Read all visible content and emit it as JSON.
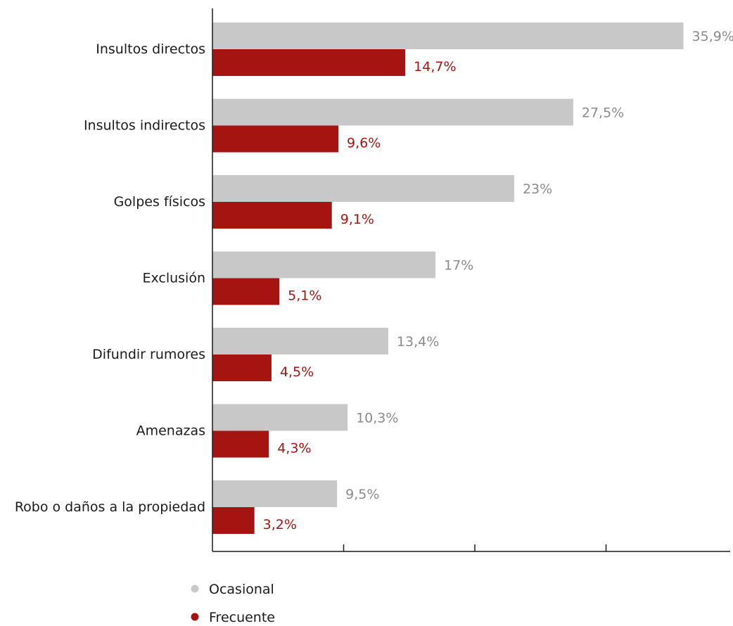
{
  "chart_data": {
    "type": "bar",
    "orientation": "horizontal",
    "categories": [
      "Insultos directos",
      "Insultos indirectos",
      "Golpes físicos",
      "Exclusión",
      "Difundir rumores",
      "Amenazas",
      "Robo o daños a la propiedad"
    ],
    "series": [
      {
        "name": "Ocasional",
        "color": "#c8c8c8",
        "label_color": "#8a8a8a",
        "values": [
          35.9,
          27.5,
          23,
          17,
          13.4,
          10.3,
          9.5
        ],
        "labels": [
          "35,9%",
          "27,5%",
          "23%",
          "17%",
          "13,4%",
          "10,3%",
          "9,5%"
        ]
      },
      {
        "name": "Frecuente",
        "color": "#a51410",
        "label_color": "#a51410",
        "values": [
          14.7,
          9.6,
          9.1,
          5.1,
          4.5,
          4.3,
          3.2
        ],
        "labels": [
          "14,7%",
          "9,6%",
          "9,1%",
          "5,1%",
          "4,5%",
          "4,3%",
          "3,2%"
        ]
      }
    ],
    "xlim": [
      0,
      40
    ],
    "x_ticks": [
      10,
      20,
      30
    ],
    "x_tick_labels_shown": false,
    "grid": false,
    "legend_position": "bottom-left",
    "title": "",
    "xlabel": "",
    "ylabel": ""
  }
}
